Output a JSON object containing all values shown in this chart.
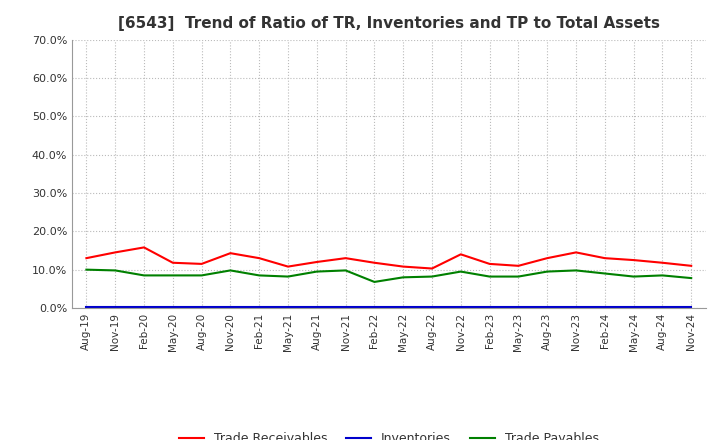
{
  "title": "[6543]  Trend of Ratio of TR, Inventories and TP to Total Assets",
  "x_labels": [
    "Aug-19",
    "Nov-19",
    "Feb-20",
    "May-20",
    "Aug-20",
    "Nov-20",
    "Feb-21",
    "May-21",
    "Aug-21",
    "Nov-21",
    "Feb-22",
    "May-22",
    "Aug-22",
    "Nov-22",
    "Feb-23",
    "May-23",
    "Aug-23",
    "Nov-23",
    "Feb-24",
    "May-24",
    "Aug-24",
    "Nov-24"
  ],
  "trade_receivables": [
    0.13,
    0.145,
    0.158,
    0.118,
    0.115,
    0.143,
    0.13,
    0.108,
    0.12,
    0.13,
    0.118,
    0.108,
    0.103,
    0.14,
    0.115,
    0.11,
    0.13,
    0.145,
    0.13,
    0.125,
    0.118,
    0.11
  ],
  "inventories": [
    0.002,
    0.002,
    0.002,
    0.002,
    0.002,
    0.002,
    0.002,
    0.002,
    0.002,
    0.002,
    0.002,
    0.002,
    0.002,
    0.002,
    0.002,
    0.002,
    0.002,
    0.002,
    0.002,
    0.002,
    0.002,
    0.002
  ],
  "trade_payables": [
    0.1,
    0.098,
    0.085,
    0.085,
    0.085,
    0.098,
    0.085,
    0.082,
    0.095,
    0.098,
    0.068,
    0.08,
    0.082,
    0.095,
    0.082,
    0.082,
    0.095,
    0.098,
    0.09,
    0.082,
    0.085,
    0.078
  ],
  "ylim": [
    0.0,
    0.7
  ],
  "yticks": [
    0.0,
    0.1,
    0.2,
    0.3,
    0.4,
    0.5,
    0.6,
    0.7
  ],
  "tr_color": "#FF0000",
  "inv_color": "#0000CC",
  "tp_color": "#008000",
  "bg_color": "#FFFFFF",
  "grid_color": "#BBBBBB",
  "legend_labels": [
    "Trade Receivables",
    "Inventories",
    "Trade Payables"
  ]
}
